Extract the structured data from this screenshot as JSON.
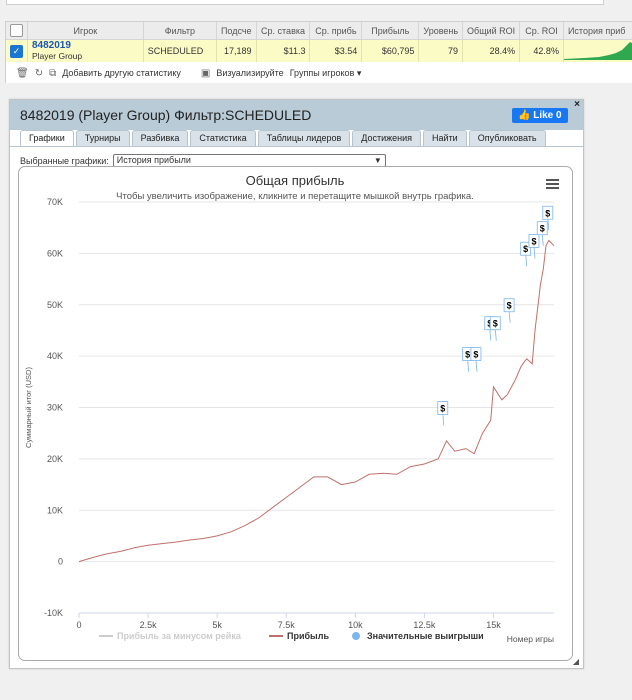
{
  "stats_table": {
    "columns": [
      "Игрок",
      "Фильтр",
      "Подсче",
      "Ср. ставка",
      "Ср. прибь",
      "Прибыль",
      "Уровень",
      "Общий ROI",
      "Ср. ROI",
      "История приб"
    ],
    "row": {
      "player_id": "8482019",
      "player_group": "Player Group",
      "filter": "SCHEDULED",
      "count": "17,189",
      "avg_stake": "$11.3",
      "avg_profit": "$3.54",
      "profit": "$60,795",
      "level": "79",
      "total_roi": "28.4%",
      "avg_roi": "42.8%",
      "selected": true
    }
  },
  "toolbar": {
    "add_stats": "Добавить другую статистику",
    "visualize": "Визуализируйте",
    "player_groups": "Группы игроков"
  },
  "panel": {
    "title": "8482019 (Player Group) Фильтр:SCHEDULED",
    "fb_like": "Like 0",
    "close": "×",
    "tabs": [
      "Графики",
      "Турниры",
      "Разбивка",
      "Статистика",
      "Таблицы лидеров",
      "Достижения",
      "Найти",
      "Опубликовать"
    ],
    "active_tab": 0,
    "chart_select_label": "Выбранные графики:",
    "chart_select_value": "История прибыли"
  },
  "chart_data": {
    "type": "line",
    "title": "Общая прибыль",
    "subtitle": "Чтобы увеличить изображение, кликните и перетащите мышкой внутрь графика.",
    "ylabel": "Суммарный итог (USD)",
    "xlabel": "Номер игры",
    "xlim": [
      0,
      17189
    ],
    "ylim": [
      -10000,
      70000
    ],
    "x_ticks": [
      "0",
      "2.5k",
      "5k",
      "7.5k",
      "10k",
      "12.5k",
      "15k"
    ],
    "x_tick_values": [
      0,
      2500,
      5000,
      7500,
      10000,
      12500,
      15000
    ],
    "y_ticks": [
      "-10K",
      "0",
      "10K",
      "20K",
      "30K",
      "40K",
      "50K",
      "60K",
      "70K"
    ],
    "y_tick_values": [
      -10000,
      0,
      10000,
      20000,
      30000,
      40000,
      50000,
      60000,
      70000
    ],
    "grid": "horizontal",
    "legend": [
      "Прибыль за минусом рейка",
      "Прибыль",
      "Значительные выигрыши"
    ],
    "legend_colors": [
      "#cccccc",
      "#c0706b",
      "#7cb5ec"
    ],
    "series": [
      {
        "name": "Прибыль",
        "color": "#c0706b",
        "x": [
          0,
          500,
          1000,
          1500,
          2000,
          2500,
          3000,
          3500,
          4000,
          4500,
          5000,
          5500,
          6000,
          6500,
          7000,
          7500,
          8000,
          8500,
          9000,
          9500,
          10000,
          10500,
          11000,
          11500,
          12000,
          12500,
          13000,
          13300,
          13600,
          14000,
          14300,
          14600,
          14900,
          15000,
          15300,
          15500,
          15800,
          16000,
          16200,
          16400,
          16500,
          16700,
          16800,
          16900,
          17000,
          17189
        ],
        "values": [
          0,
          800,
          1500,
          2000,
          2700,
          3200,
          3500,
          3800,
          4200,
          4500,
          5000,
          5800,
          7000,
          8500,
          10500,
          12500,
          14500,
          16500,
          16500,
          15000,
          15500,
          17000,
          17200,
          17000,
          18500,
          19000,
          20000,
          23500,
          21500,
          22000,
          21000,
          25000,
          27500,
          34000,
          31500,
          32500,
          35500,
          38000,
          39500,
          38500,
          45000,
          54000,
          57000,
          61500,
          62500,
          61500
        ]
      }
    ],
    "big_wins": {
      "name": "Значительные выигрыши",
      "label": "$",
      "x": [
        13200,
        14100,
        14400,
        14900,
        15100,
        15600,
        16200,
        16500,
        16800,
        17000
      ],
      "values": [
        26500,
        37000,
        37000,
        43000,
        43000,
        46500,
        57500,
        59000,
        61500,
        64500
      ]
    }
  }
}
